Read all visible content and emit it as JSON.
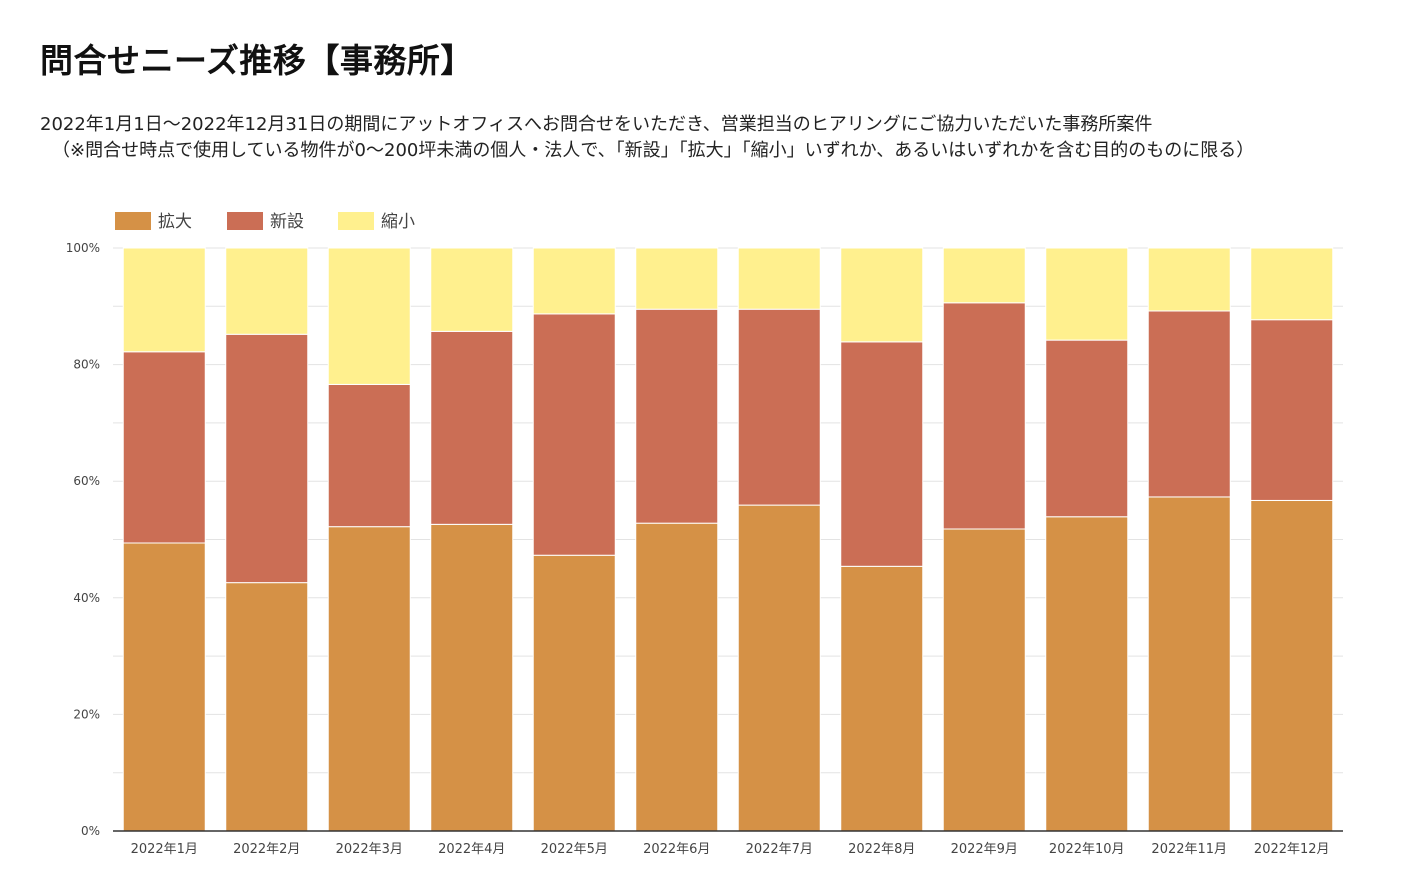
{
  "page": {
    "title": "問合せニーズ推移【事務所】",
    "description_line1": "2022年1月1日〜2022年12月31日の期間にアットオフィスへお問合せをいただき、営業担当のヒアリングにご協力いただいた事務所案件",
    "description_line2": "（※問合せ時点で使用している物件が0〜200坪未満の個人・法人で、「新設」「拡大」「縮小」いずれか、あるいはいずれかを含む目的のものに限る）"
  },
  "colors": {
    "拡大": "#D59146",
    "新設": "#CB6E55",
    "縮小": "#FFF08E",
    "grid": "#E3E3E3",
    "axis": "#333333"
  },
  "chart_data": {
    "type": "bar",
    "stacked": true,
    "percent": true,
    "title": "問合せニーズ推移【事務所】",
    "xlabel": "",
    "ylabel": "",
    "ylim": [
      0,
      100
    ],
    "yticks": [
      "0%",
      "20%",
      "40%",
      "60%",
      "80%",
      "100%"
    ],
    "grid": true,
    "legend_position": "top-left",
    "categories": [
      "2022年1月",
      "2022年2月",
      "2022年3月",
      "2022年4月",
      "2022年5月",
      "2022年6月",
      "2022年7月",
      "2022年8月",
      "2022年9月",
      "2022年10月",
      "2022年11月",
      "2022年12月"
    ],
    "series": [
      {
        "name": "拡大",
        "values": [
          49.4,
          42.6,
          52.2,
          52.6,
          47.3,
          52.8,
          55.9,
          45.4,
          51.8,
          53.9,
          57.3,
          56.7
        ]
      },
      {
        "name": "新設",
        "values": [
          32.8,
          42.6,
          24.4,
          33.1,
          41.4,
          36.7,
          33.6,
          38.5,
          38.8,
          30.3,
          31.9,
          31.0
        ]
      },
      {
        "name": "縮小",
        "values": [
          17.8,
          14.8,
          23.4,
          14.3,
          11.3,
          10.5,
          10.5,
          16.1,
          9.4,
          15.8,
          10.8,
          12.3
        ]
      }
    ]
  }
}
